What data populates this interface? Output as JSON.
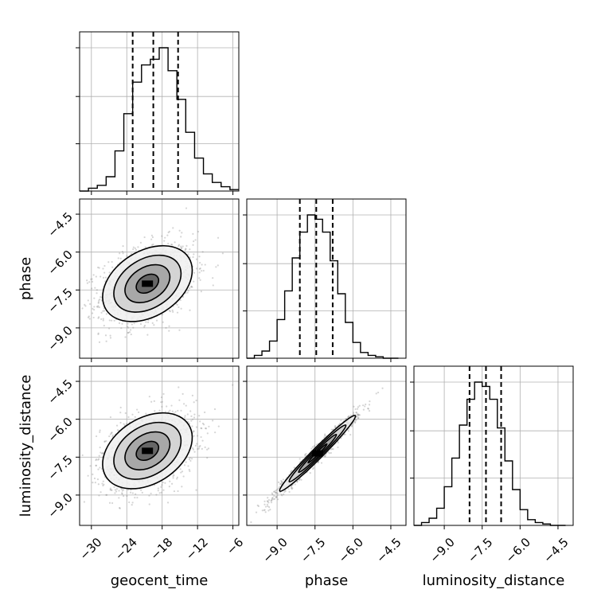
{
  "chart_data": {
    "type": "corner",
    "parameters": [
      "geocent_time",
      "phase",
      "luminosity_distance"
    ],
    "axes": {
      "geocent_time": {
        "label": "geocent_time",
        "range": [
          -32,
          -5
        ],
        "ticks": [
          -30,
          -24,
          -18,
          -12,
          -6
        ],
        "tick_labels": [
          "−30",
          "−24",
          "−18",
          "−12",
          "−6"
        ]
      },
      "phase": {
        "label": "phase",
        "range": [
          -10.2,
          -3.9
        ],
        "ticks": [
          -9.0,
          -7.5,
          -6.0,
          -4.5
        ],
        "tick_labels": [
          "−9.0",
          "−7.5",
          "−6.0",
          "−4.5"
        ]
      },
      "luminosity_distance": {
        "label": "luminosity_distance",
        "range": [
          -10.2,
          -3.9
        ],
        "ticks": [
          -9.0,
          -7.5,
          -6.0,
          -4.5
        ],
        "tick_labels": [
          "−9.0",
          "−7.5",
          "−6.0",
          "−4.5"
        ]
      }
    },
    "grid": true,
    "histograms": [
      {
        "parameter": "geocent_time",
        "bin_edges": [
          -32,
          -30.5,
          -29,
          -27.5,
          -26,
          -24.5,
          -23,
          -21.5,
          -20,
          -18.5,
          -17,
          -15.5,
          -14,
          -12.5,
          -11,
          -9.5,
          -8,
          -6.5,
          -5
        ],
        "counts": [
          0.0,
          0.02,
          0.04,
          0.1,
          0.28,
          0.54,
          0.76,
          0.88,
          0.92,
          1.0,
          0.84,
          0.64,
          0.41,
          0.23,
          0.12,
          0.06,
          0.03,
          0.01
        ],
        "quantiles": [
          -23.0,
          -19.5,
          -15.3
        ]
      },
      {
        "parameter": "phase",
        "bin_edges": [
          -10.2,
          -9.9,
          -9.6,
          -9.3,
          -9.0,
          -8.7,
          -8.4,
          -8.1,
          -7.8,
          -7.5,
          -7.2,
          -6.9,
          -6.6,
          -6.3,
          -6.0,
          -5.7,
          -5.4,
          -5.1,
          -4.8,
          -4.5,
          -4.2
        ],
        "counts": [
          0.0,
          0.02,
          0.05,
          0.12,
          0.27,
          0.47,
          0.7,
          0.88,
          1.0,
          0.97,
          0.88,
          0.68,
          0.45,
          0.25,
          0.11,
          0.04,
          0.02,
          0.01,
          0.0,
          0.0
        ],
        "quantiles": [
          -8.1,
          -7.45,
          -6.8
        ]
      },
      {
        "parameter": "luminosity_distance",
        "bin_edges": [
          -10.2,
          -9.9,
          -9.6,
          -9.3,
          -9.0,
          -8.7,
          -8.4,
          -8.1,
          -7.8,
          -7.5,
          -7.2,
          -6.9,
          -6.6,
          -6.3,
          -6.0,
          -5.7,
          -5.4,
          -5.1,
          -4.8,
          -4.5,
          -4.2
        ],
        "counts": [
          0.0,
          0.02,
          0.05,
          0.12,
          0.27,
          0.47,
          0.7,
          0.88,
          1.0,
          0.97,
          0.88,
          0.68,
          0.45,
          0.25,
          0.11,
          0.04,
          0.02,
          0.01,
          0.0,
          0.0
        ],
        "quantiles": [
          -8.0,
          -7.35,
          -6.75
        ]
      }
    ],
    "joint": [
      {
        "x": "geocent_time",
        "y": "phase",
        "center": [
          -20.5,
          -7.25
        ],
        "sigma": [
          3.8,
          0.75
        ],
        "correlation": 0.35
      },
      {
        "x": "geocent_time",
        "y": "luminosity_distance",
        "center": [
          -20.5,
          -7.25
        ],
        "sigma": [
          3.8,
          0.75
        ],
        "correlation": 0.35
      },
      {
        "x": "phase",
        "y": "luminosity_distance",
        "center": [
          -7.4,
          -7.35
        ],
        "sigma": [
          0.75,
          0.75
        ],
        "correlation": 0.98
      }
    ],
    "contour_levels_sigma": [
      0.5,
      1.0,
      1.5,
      2.0
    ],
    "colors": {
      "line": "#000000",
      "quantile": "#000000",
      "density": "#000000",
      "grid": "#b0b0b0"
    }
  }
}
